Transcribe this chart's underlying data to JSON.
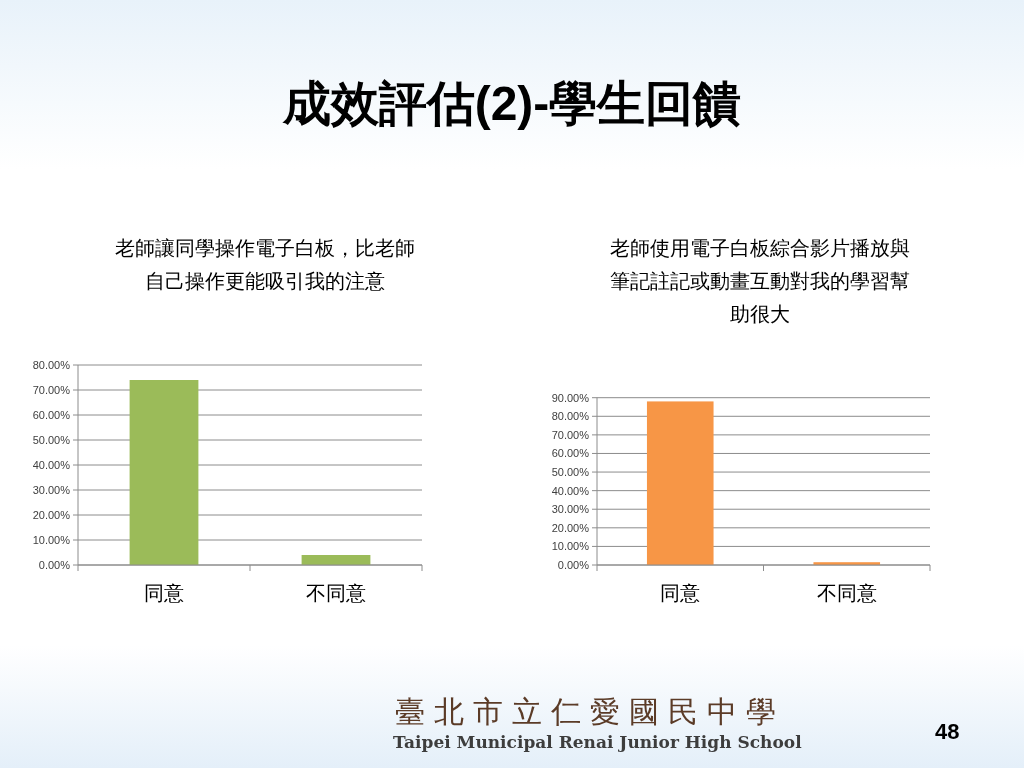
{
  "chart_data": [
    {
      "type": "other",
      "title": "成效評估(2)-學生回饋"
    },
    {
      "type": "bar",
      "title": "老師讓同學操作電子白板，比老師自己操作更能吸引我的注意",
      "categories": [
        "同意",
        "不同意"
      ],
      "values": [
        74,
        4
      ],
      "color": "#9bbb59",
      "ylim": [
        0,
        80
      ],
      "yticks": [
        {
          "value": 0,
          "label": "0.00%"
        },
        {
          "value": 10,
          "label": "10.00%"
        },
        {
          "value": 20,
          "label": "20.00%"
        },
        {
          "value": 30,
          "label": "30.00%"
        },
        {
          "value": 40,
          "label": "40.00%"
        },
        {
          "value": 50,
          "label": "50.00%"
        },
        {
          "value": 60,
          "label": "60.00%"
        },
        {
          "value": 70,
          "label": "70.00%"
        },
        {
          "value": 80,
          "label": "80.00%"
        }
      ],
      "grid": "y"
    },
    {
      "type": "bar",
      "title": "老師使用電子白板綜合影片播放與筆記註記或動畫互動對我的學習幫助很大",
      "categories": [
        "同意",
        "不同意"
      ],
      "values": [
        88,
        1.5
      ],
      "color": "#f79646",
      "ylim": [
        0,
        90
      ],
      "yticks": [
        {
          "value": 0,
          "label": "0.00%"
        },
        {
          "value": 10,
          "label": "10.00%"
        },
        {
          "value": 20,
          "label": "20.00%"
        },
        {
          "value": 30,
          "label": "30.00%"
        },
        {
          "value": 40,
          "label": "40.00%"
        },
        {
          "value": 50,
          "label": "50.00%"
        },
        {
          "value": 60,
          "label": "60.00%"
        },
        {
          "value": 70,
          "label": "70.00%"
        },
        {
          "value": 80,
          "label": "80.00%"
        },
        {
          "value": 90,
          "label": "90.00%"
        }
      ],
      "grid": "y"
    },
    {
      "type": "other",
      "annotations": [
        "臺北市立仁愛國民中學",
        "Taipei Municipal Renai Junior High School",
        "48"
      ]
    }
  ]
}
